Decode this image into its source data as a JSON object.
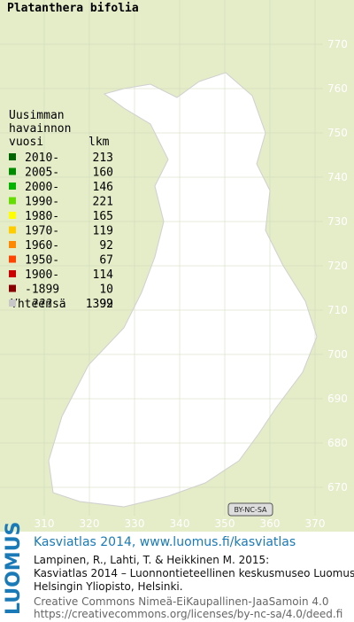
{
  "map": {
    "title": "Platanthera bifolia",
    "y_axis_labels": [
      "770",
      "760",
      "750",
      "740",
      "730",
      "720",
      "710",
      "700",
      "690",
      "680",
      "670"
    ],
    "x_axis_labels": [
      "310",
      "320",
      "330",
      "340",
      "350",
      "360",
      "370"
    ],
    "license_badge": "BY-NC-SA"
  },
  "legend": {
    "heading": [
      "Uusimman",
      "havainnon"
    ],
    "col_year": "vuosi",
    "col_count": "lkm",
    "rows": [
      {
        "label": "2010-",
        "count": "213",
        "color": "#006400"
      },
      {
        "label": "2005-",
        "count": "160",
        "color": "#008c00"
      },
      {
        "label": "2000-",
        "count": "146",
        "color": "#00b400"
      },
      {
        "label": "1990-",
        "count": "221",
        "color": "#66dd00"
      },
      {
        "label": "1980-",
        "count": "165",
        "color": "#ffff00"
      },
      {
        "label": "1970-",
        "count": "119",
        "color": "#ffcc00"
      },
      {
        "label": "1960-",
        "count": "92",
        "color": "#ff8800"
      },
      {
        "label": "1950-",
        "count": "67",
        "color": "#ff4400"
      },
      {
        "label": "1900-",
        "count": "114",
        "color": "#cc0000"
      },
      {
        "label": "-1899",
        "count": "10",
        "color": "#880000"
      },
      {
        "label": "???",
        "count": "92",
        "color": "#c8c8c8"
      }
    ],
    "total_label": "Yhteensä",
    "total": "1399"
  },
  "footer": {
    "logo": "LUOMUS",
    "title": "Kasviatlas 2014, www.luomus.fi/kasviatlas",
    "citation": [
      "Lampinen, R., Lahti, T. & Heikkinen M. 2015:",
      "Kasviatlas 2014 – Luonnontieteellinen keskusmuseo Luomus,",
      "Helsingin Yliopisto, Helsinki."
    ],
    "license": [
      "Creative Commons Nimeä-EiKaupallinen-JaaSamoin 4.0",
      "https://creativecommons.org/licenses/by-nc-sa/4.0/deed.fi"
    ]
  }
}
